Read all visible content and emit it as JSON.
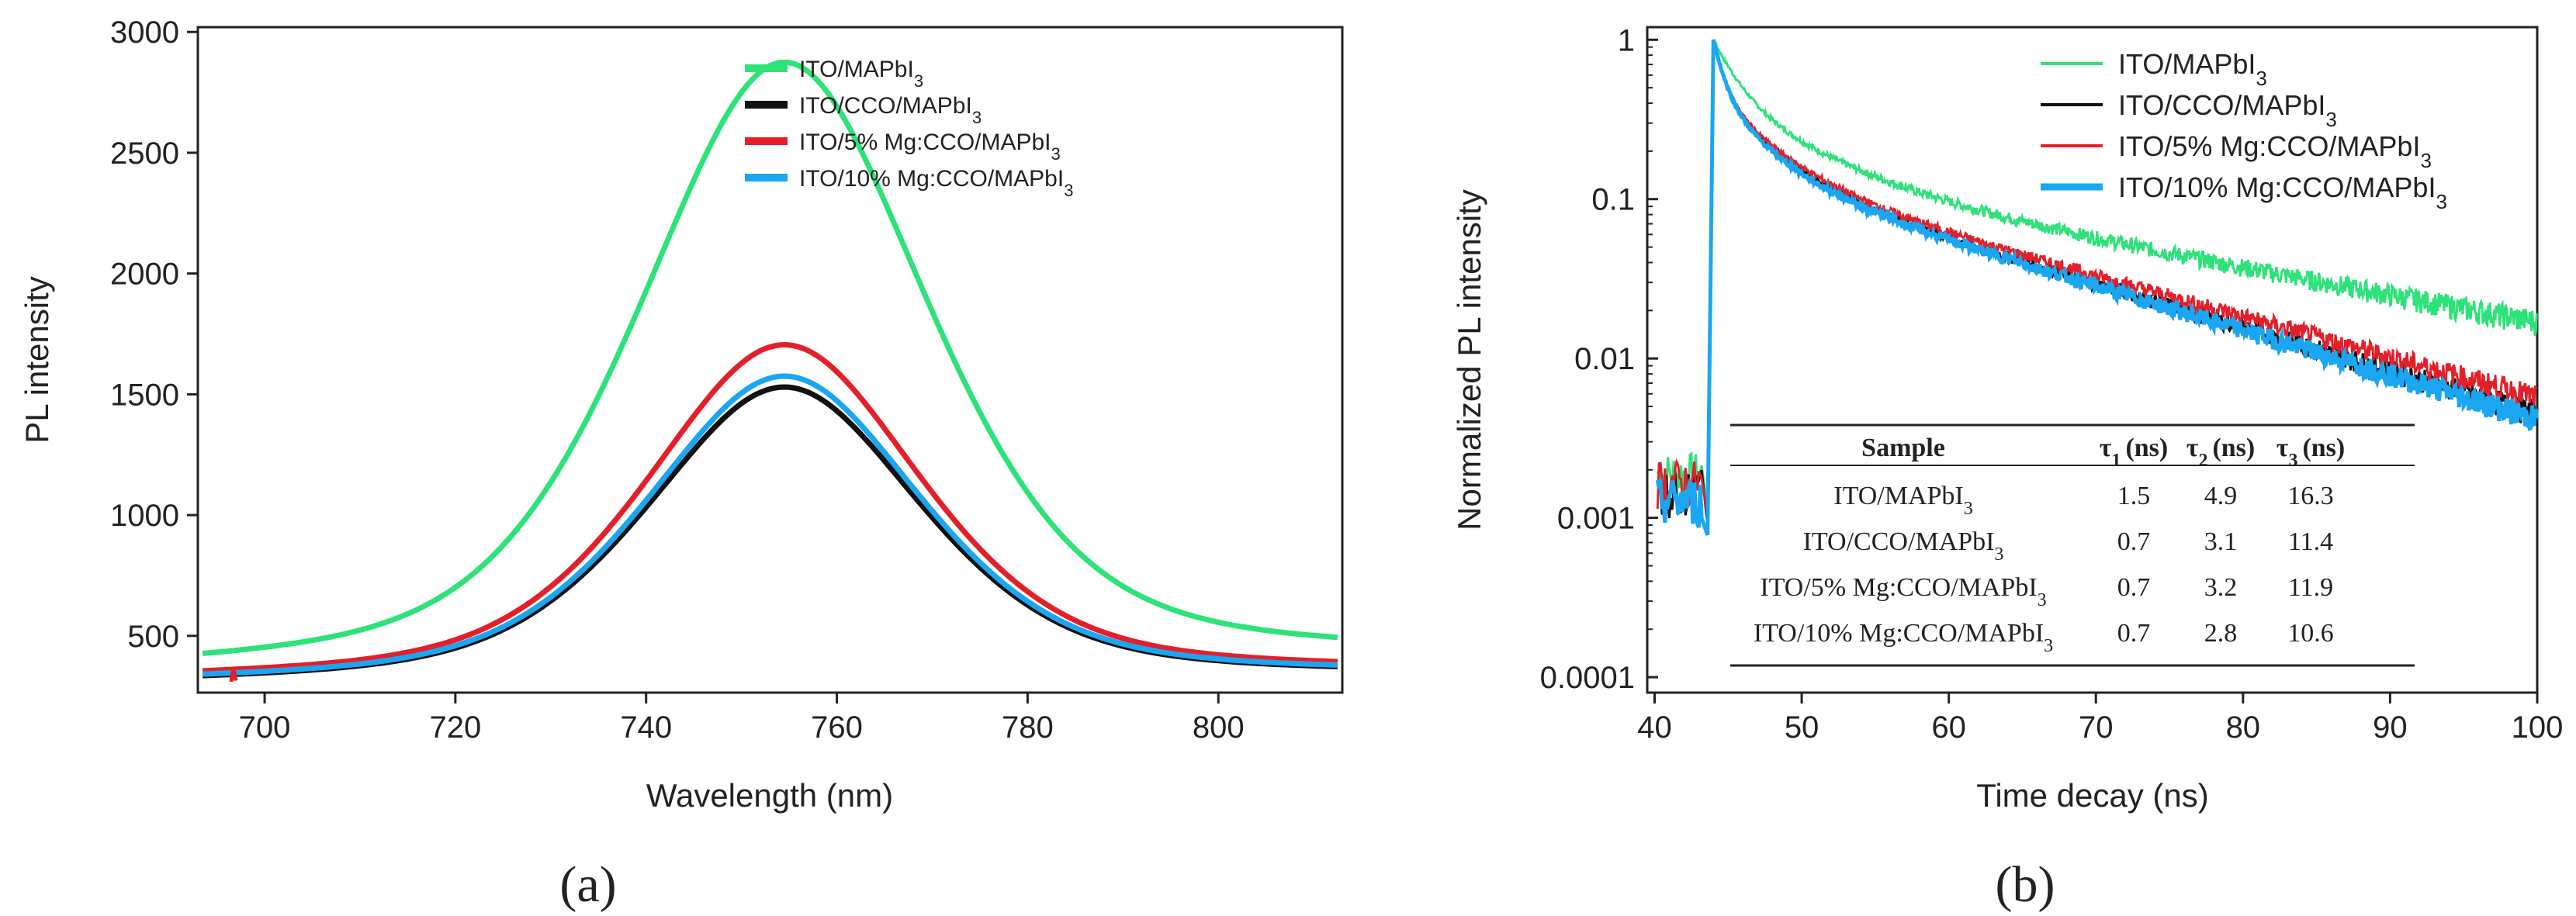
{
  "colors": {
    "green": "#2ee27a",
    "black": "#111111",
    "red": "#e3202a",
    "blue": "#1aa6f0"
  },
  "chart_data": [
    {
      "type": "line",
      "panel_label": "a",
      "xlabel": "Wavelength (nm)",
      "ylabel": "PL intensity",
      "xlim": [
        693,
        813
      ],
      "ylim": [
        265,
        3020
      ],
      "xticks": [
        700,
        720,
        740,
        760,
        780,
        800
      ],
      "yticks": [
        500,
        1000,
        1500,
        2000,
        2500,
        3000
      ],
      "peak_wavelength": 754.5,
      "series": [
        {
          "name": "ITO/MAPbI",
          "sub": "3",
          "color_key": "green",
          "peak": 2875,
          "base_left": 335,
          "base_right": 395,
          "half_width": 18
        },
        {
          "name": "ITO/CCO/MAPbI",
          "sub": "3",
          "color_key": "black",
          "peak": 1530,
          "base_left": 295,
          "base_right": 330,
          "half_width": 17
        },
        {
          "name": "ITO/5% Mg:CCO/MAPbI",
          "sub": "3",
          "color_key": "red",
          "peak": 1705,
          "base_left": 310,
          "base_right": 345,
          "half_width": 17
        },
        {
          "name": "ITO/10% Mg:CCO/MAPbI",
          "sub": "3",
          "color_key": "blue",
          "peak": 1575,
          "base_left": 300,
          "base_right": 335,
          "half_width": 17
        }
      ]
    },
    {
      "type": "line",
      "panel_label": "b",
      "xlabel": "Time decay (ns)",
      "ylabel": "Normalized PL intensity",
      "yscale": "log",
      "xlim": [
        39.5,
        100
      ],
      "ylim": [
        8e-05,
        1.2
      ],
      "xticks": [
        40,
        50,
        60,
        70,
        80,
        90,
        100
      ],
      "ytick_labels": [
        "1",
        "0.1",
        "0.01",
        "0.001",
        "0.0001"
      ],
      "yticks": [
        1,
        0.1,
        0.01,
        0.001,
        0.0001
      ],
      "t0": 44,
      "series": [
        {
          "name": "ITO/MAPbI",
          "sub": "3",
          "color_key": "green",
          "tau": [
            1.5,
            4.9,
            16.3
          ],
          "end_value": 0.017,
          "pre_level": 0.0019
        },
        {
          "name": "ITO/CCO/MAPbI",
          "sub": "3",
          "color_key": "black",
          "tau": [
            0.7,
            3.1,
            11.4
          ],
          "end_value": 0.0045,
          "pre_level": 0.0015
        },
        {
          "name": "ITO/5% Mg:CCO/MAPbI",
          "sub": "3",
          "color_key": "red",
          "tau": [
            0.7,
            3.2,
            11.9
          ],
          "end_value": 0.0057,
          "pre_level": 0.0017
        },
        {
          "name": "ITO/10% Mg:CCO/MAPbI",
          "sub": "3",
          "color_key": "blue",
          "tau": [
            0.7,
            2.8,
            10.6
          ],
          "end_value": 0.0042,
          "pre_level": 0.0013
        }
      ],
      "table": {
        "headers": [
          "Sample",
          "τ",
          "(ns)",
          "τ",
          "(ns)",
          "τ",
          "(ns)"
        ],
        "header_subs": [
          "1",
          "2",
          "3"
        ],
        "rows": [
          {
            "sample": "ITO/MAPbI",
            "sub": "3",
            "t1": "1.5",
            "t2": "4.9",
            "t3": "16.3"
          },
          {
            "sample": "ITO/CCO/MAPbI",
            "sub": "3",
            "t1": "0.7",
            "t2": "3.1",
            "t3": "11.4"
          },
          {
            "sample": "ITO/5% Mg:CCO/MAPbI",
            "sub": "3",
            "t1": "0.7",
            "t2": "3.2",
            "t3": "11.9"
          },
          {
            "sample": "ITO/10% Mg:CCO/MAPbI",
            "sub": "3",
            "t1": "0.7",
            "t2": "2.8",
            "t3": "10.6"
          }
        ]
      }
    }
  ],
  "captions": {
    "a": "(a)",
    "b": "(b)"
  }
}
